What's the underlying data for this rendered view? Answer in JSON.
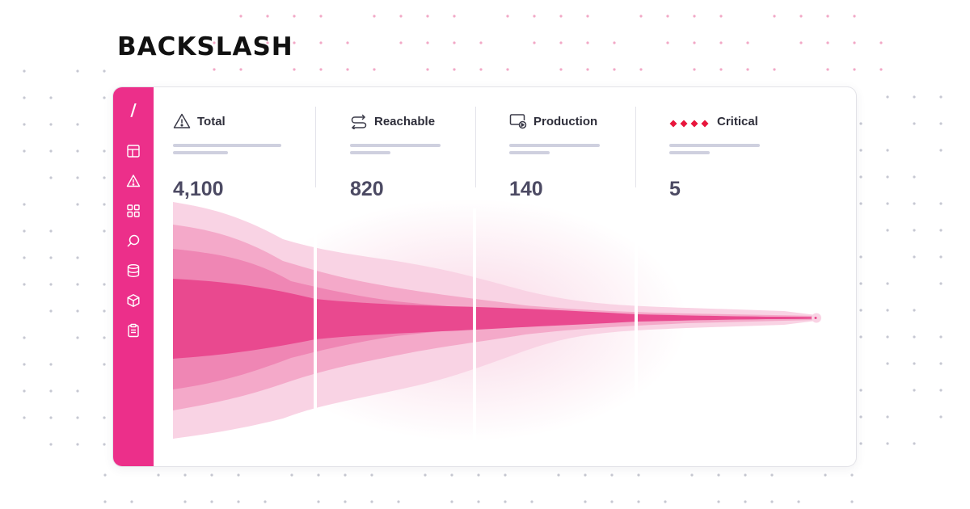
{
  "brand": {
    "name": "BACKSLASH",
    "accent": "#ec2f8a"
  },
  "sidebar": {
    "top_glyph": "/",
    "items": [
      {
        "icon": "layout-icon"
      },
      {
        "icon": "alert-triangle-icon"
      },
      {
        "icon": "grid-icon"
      },
      {
        "icon": "search-icon"
      },
      {
        "icon": "database-icon"
      },
      {
        "icon": "package-icon"
      },
      {
        "icon": "clipboard-icon"
      }
    ]
  },
  "stats": [
    {
      "icon": "warning-icon",
      "label": "Total",
      "value": "4,100"
    },
    {
      "icon": "reachable-icon",
      "label": "Reachable",
      "value": "820"
    },
    {
      "icon": "production-icon",
      "label": "Production",
      "value": "140"
    },
    {
      "icon": "critical-diamonds-icon",
      "label": "Critical",
      "value": "5"
    }
  ],
  "colors": {
    "critical_red": "#e8163c",
    "funnel_dark": "#e94a91",
    "funnel_mid": "#f090ba",
    "funnel_light": "#f8c7dc"
  }
}
